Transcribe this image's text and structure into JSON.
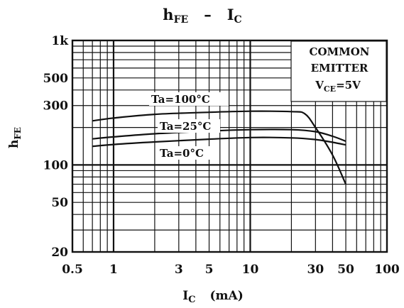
{
  "chart_data": {
    "type": "line",
    "title": {
      "main": "h",
      "main_sub": "FE",
      "dash": "–",
      "second": "I",
      "second_sub": "C"
    },
    "xlabel": {
      "main": "I",
      "sub": "C",
      "unit": "(mA)"
    },
    "ylabel": {
      "main": "h",
      "sub": "FE"
    },
    "x_scale": "log",
    "y_scale": "log",
    "xlim": [
      0.5,
      100
    ],
    "ylim": [
      20,
      1000
    ],
    "x_ticks": [
      {
        "value": 0.5,
        "label": "0.5"
      },
      {
        "value": 1,
        "label": "1"
      },
      {
        "value": 3,
        "label": "3"
      },
      {
        "value": 5,
        "label": "5"
      },
      {
        "value": 10,
        "label": "10"
      },
      {
        "value": 30,
        "label": "30"
      },
      {
        "value": 50,
        "label": "50"
      },
      {
        "value": 100,
        "label": "100"
      }
    ],
    "y_ticks": [
      {
        "value": 20,
        "label": "20"
      },
      {
        "value": 50,
        "label": "50"
      },
      {
        "value": 100,
        "label": "100"
      },
      {
        "value": 300,
        "label": "300"
      },
      {
        "value": 500,
        "label": "500"
      },
      {
        "value": 1000,
        "label": "1k"
      }
    ],
    "x_grid": [
      0.6,
      0.7,
      0.8,
      0.9,
      1,
      2,
      3,
      4,
      5,
      6,
      7,
      8,
      9,
      10,
      20,
      30,
      40,
      50,
      60,
      70,
      80,
      90
    ],
    "y_grid": [
      30,
      40,
      50,
      60,
      70,
      80,
      90,
      100,
      200,
      300,
      400,
      500,
      600,
      700,
      800,
      900
    ],
    "grid": true,
    "annotation": {
      "line1": "COMMON",
      "line2": "EMITTER",
      "line3_main": "V",
      "line3_sub": "CE",
      "line3_rest": "=5V"
    },
    "series": [
      {
        "name": "Ta=100°C",
        "points": [
          [
            0.7,
            226
          ],
          [
            1,
            238
          ],
          [
            2,
            255
          ],
          [
            5,
            265
          ],
          [
            10,
            270
          ],
          [
            20,
            268
          ],
          [
            25,
            258
          ],
          [
            30,
            200
          ],
          [
            40,
            120
          ],
          [
            50,
            70
          ]
        ]
      },
      {
        "name": "Ta=25°C",
        "points": [
          [
            0.7,
            162
          ],
          [
            1,
            168
          ],
          [
            2,
            178
          ],
          [
            5,
            187
          ],
          [
            10,
            192
          ],
          [
            20,
            192
          ],
          [
            30,
            185
          ],
          [
            40,
            170
          ],
          [
            50,
            155
          ]
        ]
      },
      {
        "name": "Ta=0°C",
        "points": [
          [
            0.7,
            141
          ],
          [
            1,
            146
          ],
          [
            2,
            153
          ],
          [
            5,
            161
          ],
          [
            10,
            166
          ],
          [
            20,
            165
          ],
          [
            30,
            160
          ],
          [
            40,
            152
          ],
          [
            50,
            145
          ]
        ]
      }
    ]
  }
}
